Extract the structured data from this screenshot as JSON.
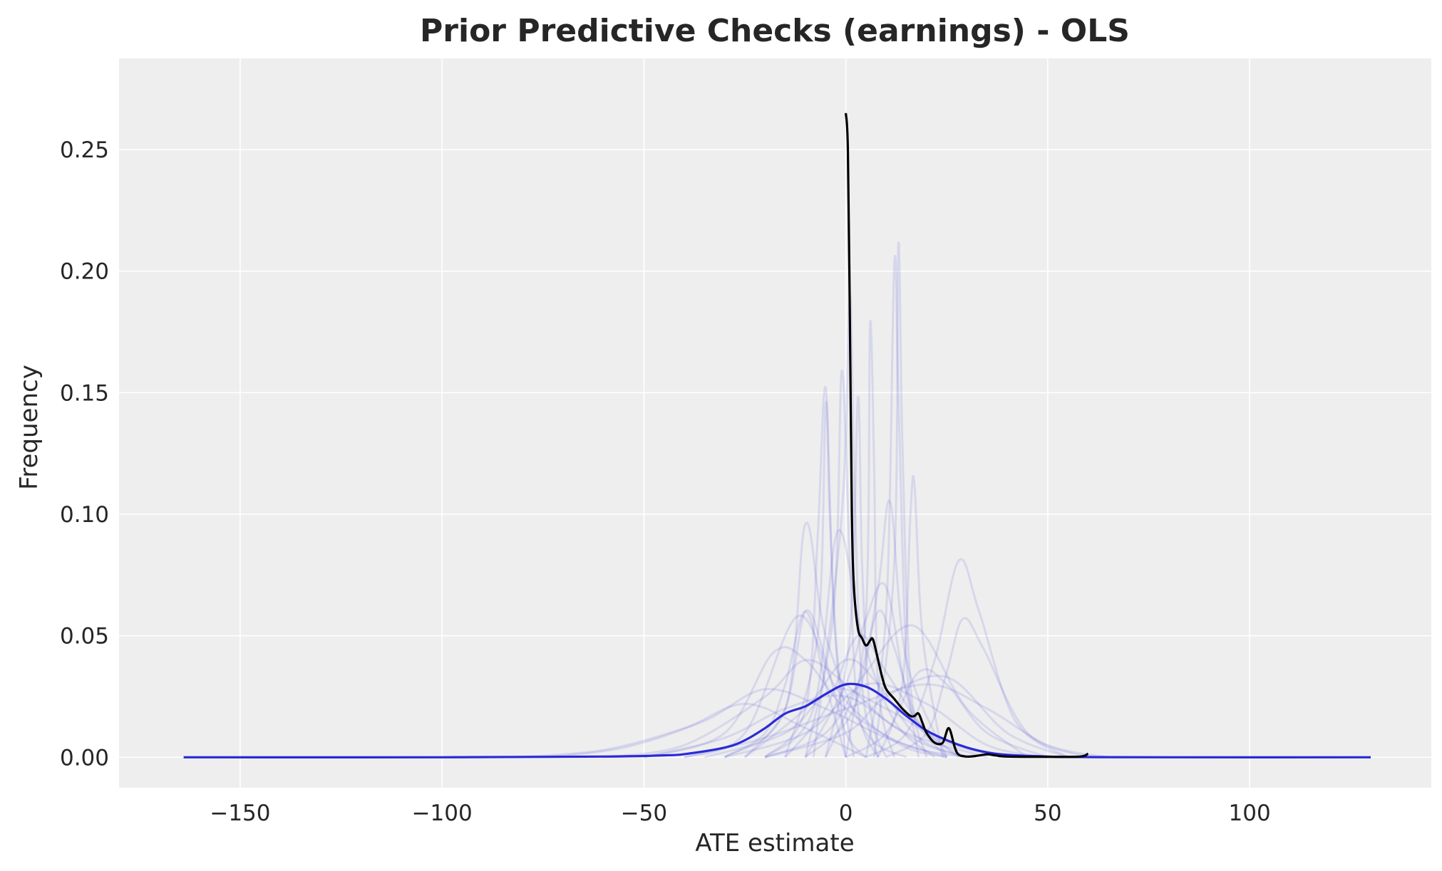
{
  "chart_data": {
    "type": "line",
    "title": "Prior Predictive Checks (earnings) - OLS",
    "xlabel": "ATE estimate",
    "ylabel": "Frequency",
    "xlim": [
      -180,
      145
    ],
    "ylim": [
      -0.0125,
      0.2875
    ],
    "xticks": [
      -150,
      -100,
      -50,
      0,
      50,
      100
    ],
    "xtick_labels": [
      "−150",
      "−100",
      "−50",
      "0",
      "50",
      "100"
    ],
    "yticks": [
      0.0,
      0.05,
      0.1,
      0.15,
      0.2,
      0.25
    ],
    "ytick_labels": [
      "0.00",
      "0.05",
      "0.10",
      "0.15",
      "0.20",
      "0.25"
    ],
    "grid": true,
    "background": "#eeeeee",
    "colors": {
      "prior_samples": "#3b3bdc",
      "prior_mean": "#2a2ad6",
      "observed": "#000000",
      "grid": "#ffffff"
    },
    "series": [
      {
        "role": "prior_samples",
        "lines": [
          {
            "x": [
              -30,
              -20,
              -15,
              -10,
              -5,
              0
            ],
            "y": [
              0,
              0.01,
              0.03,
              0.06,
              0.03,
              0.0
            ]
          },
          {
            "x": [
              -25,
              -15,
              -10,
              -5,
              0,
              5
            ],
            "y": [
              0,
              0.02,
              0.06,
              0.04,
              0.01,
              0
            ]
          },
          {
            "x": [
              -20,
              -10,
              -7,
              -5,
              -3,
              0
            ],
            "y": [
              0,
              0.02,
              0.09,
              0.152,
              0.06,
              0
            ]
          },
          {
            "x": [
              -15,
              -7,
              -5,
              -4,
              -2,
              2
            ],
            "y": [
              0,
              0.05,
              0.145,
              0.1,
              0.04,
              0
            ]
          },
          {
            "x": [
              -10,
              -3,
              -1,
              1,
              3,
              8
            ],
            "y": [
              0,
              0.06,
              0.159,
              0.08,
              0.02,
              0
            ]
          },
          {
            "x": [
              -8,
              -1,
              1,
              2,
              4,
              8
            ],
            "y": [
              0,
              0.1,
              0.19,
              0.12,
              0.03,
              0
            ]
          },
          {
            "x": [
              -5,
              1,
              3,
              4,
              6,
              10
            ],
            "y": [
              0,
              0.05,
              0.148,
              0.08,
              0.02,
              0
            ]
          },
          {
            "x": [
              0,
              5,
              6,
              7,
              8,
              12
            ],
            "y": [
              0,
              0.06,
              0.178,
              0.12,
              0.03,
              0
            ]
          },
          {
            "x": [
              5,
              10,
              12,
              13,
              15,
              18
            ],
            "y": [
              0,
              0.06,
              0.203,
              0.15,
              0.04,
              0
            ]
          },
          {
            "x": [
              7,
              12,
              13,
              14,
              16,
              20
            ],
            "y": [
              0,
              0.08,
              0.211,
              0.13,
              0.03,
              0
            ]
          },
          {
            "x": [
              8,
              14,
              16,
              17,
              19,
              24
            ],
            "y": [
              0,
              0.03,
              0.1,
              0.112,
              0.05,
              0
            ]
          },
          {
            "x": [
              -60,
              -40,
              -20,
              -10,
              0,
              10,
              20,
              30
            ],
            "y": [
              0,
              0.005,
              0.025,
              0.04,
              0.03,
              0.015,
              0.005,
              0
            ]
          },
          {
            "x": [
              -50,
              -30,
              -18,
              -10,
              0,
              15,
              30
            ],
            "y": [
              0,
              0.01,
              0.043,
              0.04,
              0.02,
              0.005,
              0
            ]
          },
          {
            "x": [
              -75,
              -55,
              -35,
              -20,
              -5,
              10,
              25
            ],
            "y": [
              0,
              0.004,
              0.015,
              0.028,
              0.02,
              0.008,
              0
            ]
          },
          {
            "x": [
              -82,
              -60,
              -40,
              -25,
              -10,
              5
            ],
            "y": [
              0,
              0.003,
              0.012,
              0.022,
              0.012,
              0
            ]
          },
          {
            "x": [
              -40,
              -25,
              -12,
              -3,
              5,
              15,
              25
            ],
            "y": [
              0,
              0.01,
              0.058,
              0.03,
              0.015,
              0.004,
              0
            ]
          },
          {
            "x": [
              -30,
              -15,
              -10,
              -5,
              5,
              15
            ],
            "y": [
              0,
              0.02,
              0.096,
              0.05,
              0.01,
              0
            ]
          },
          {
            "x": [
              -20,
              -8,
              -2,
              4,
              12,
              22
            ],
            "y": [
              0,
              0.02,
              0.093,
              0.05,
              0.015,
              0
            ]
          },
          {
            "x": [
              -10,
              0,
              5,
              10,
              16,
              25
            ],
            "y": [
              0,
              0.03,
              0.057,
              0.07,
              0.02,
              0
            ]
          },
          {
            "x": [
              -10,
              2,
              8,
              11,
              15,
              25
            ],
            "y": [
              0,
              0.02,
              0.07,
              0.105,
              0.04,
              0
            ]
          },
          {
            "x": [
              0,
              10,
              18,
              25,
              35,
              50
            ],
            "y": [
              0,
              0.01,
              0.035,
              0.03,
              0.01,
              0
            ]
          },
          {
            "x": [
              5,
              15,
              22,
              28,
              33,
              42,
              55
            ],
            "y": [
              0,
              0.01,
              0.04,
              0.081,
              0.06,
              0.015,
              0
            ]
          },
          {
            "x": [
              10,
              20,
              25,
              29,
              34,
              45,
              60
            ],
            "y": [
              0,
              0.01,
              0.035,
              0.057,
              0.045,
              0.01,
              0
            ]
          },
          {
            "x": [
              -20,
              -5,
              5,
              17,
              30,
              45
            ],
            "y": [
              0,
              0.01,
              0.035,
              0.054,
              0.02,
              0
            ]
          },
          {
            "x": [
              -40,
              -20,
              0,
              20,
              35,
              50,
              65
            ],
            "y": [
              0,
              0.008,
              0.02,
              0.03,
              0.02,
              0.005,
              0
            ]
          },
          {
            "x": [
              -30,
              -10,
              5,
              20,
              35,
              50
            ],
            "y": [
              0,
              0.01,
              0.03,
              0.022,
              0.005,
              0
            ]
          },
          {
            "x": [
              -20,
              0,
              10,
              25,
              40,
              55
            ],
            "y": [
              0,
              0.01,
              0.025,
              0.033,
              0.01,
              0
            ]
          },
          {
            "x": [
              -15,
              -5,
              3,
              10,
              20,
              30
            ],
            "y": [
              0,
              0.02,
              0.05,
              0.035,
              0.01,
              0
            ]
          },
          {
            "x": [
              -25,
              -10,
              0,
              8,
              18,
              30
            ],
            "y": [
              0,
              0.02,
              0.04,
              0.03,
              0.008,
              0
            ]
          },
          {
            "x": [
              -5,
              3,
              8,
              12,
              18,
              28
            ],
            "y": [
              0,
              0.03,
              0.06,
              0.045,
              0.015,
              0
            ]
          },
          {
            "x": [
              -50,
              -30,
              -15,
              0,
              15,
              35
            ],
            "y": [
              0,
              0.008,
              0.02,
              0.025,
              0.01,
              0
            ]
          },
          {
            "x": [
              -35,
              -15,
              -3,
              10,
              25,
              40
            ],
            "y": [
              0,
              0.01,
              0.028,
              0.02,
              0.006,
              0
            ]
          }
        ]
      },
      {
        "role": "prior_mean",
        "x": [
          -164,
          -100,
          -60,
          -45,
          -40,
          -30,
          -25,
          -20,
          -15,
          -10,
          -5,
          0,
          5,
          10,
          15,
          20,
          25,
          30,
          35,
          40,
          50,
          60,
          80,
          130
        ],
        "y": [
          0,
          0,
          0.0003,
          0.0008,
          0.0013,
          0.004,
          0.007,
          0.012,
          0.018,
          0.021,
          0.026,
          0.03,
          0.029,
          0.024,
          0.017,
          0.011,
          0.007,
          0.004,
          0.002,
          0.001,
          0.0003,
          0.0001,
          0,
          0
        ]
      },
      {
        "role": "observed",
        "x": [
          0,
          0.5,
          1,
          1.5,
          2,
          3,
          4,
          5,
          6,
          6.5,
          7,
          8,
          9,
          10,
          12,
          14,
          16,
          17,
          18,
          19,
          20,
          22,
          24,
          25.5,
          27,
          28,
          30,
          32,
          35,
          37,
          40,
          50,
          58,
          60
        ],
        "y": [
          0.265,
          0.25,
          0.18,
          0.1,
          0.07,
          0.053,
          0.049,
          0.046,
          0.048,
          0.049,
          0.047,
          0.04,
          0.033,
          0.028,
          0.024,
          0.02,
          0.017,
          0.017,
          0.018,
          0.014,
          0.01,
          0.006,
          0.006,
          0.012,
          0.004,
          0.001,
          0.0003,
          0.0005,
          0.0012,
          0.0008,
          0.0003,
          0.0002,
          0.0003,
          0.0015
        ]
      }
    ]
  }
}
